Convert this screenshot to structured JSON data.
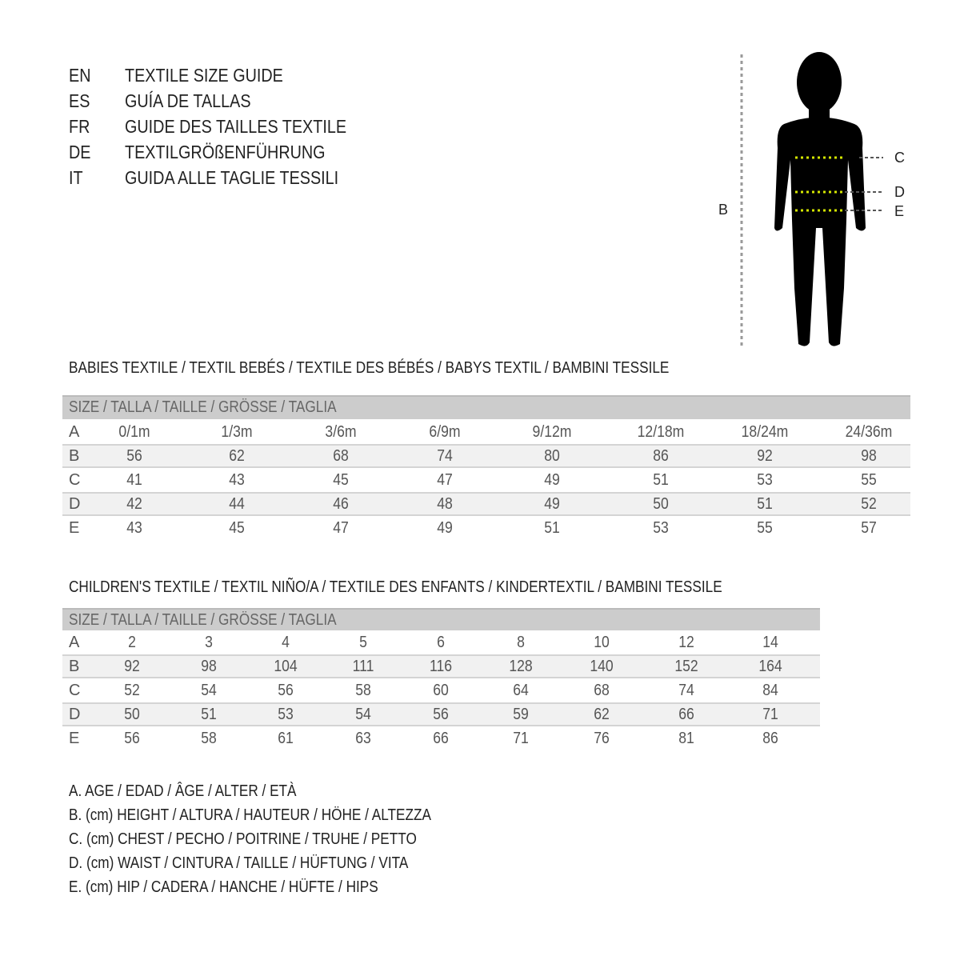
{
  "titles": [
    {
      "code": "EN",
      "text": "TEXTILE SIZE GUIDE"
    },
    {
      "code": "ES",
      "text": "GUÍA DE TALLAS"
    },
    {
      "code": "FR",
      "text": "GUIDE DES TAILLES TEXTILE"
    },
    {
      "code": "DE",
      "text": "TEXTILGRÖßENFÜHRUNG"
    },
    {
      "code": "IT",
      "text": "GUIDA ALLE TAGLIE TESSILI"
    }
  ],
  "figure": {
    "height_label": "B",
    "chest_label": "C",
    "waist_label": "D",
    "hip_label": "E",
    "measure_line_color": "#d4e600"
  },
  "babies": {
    "title": "BABIES TEXTILE / TEXTIL BEBÉS / TEXTILE DES BÉBÉS / BABYS TEXTIL  / BAMBINI TESSILE",
    "header": "SIZE / TALLA / TAILLE / GRÖSSE / TAGLIA",
    "rows": [
      {
        "label": "A",
        "values": [
          "0/1m",
          "1/3m",
          "3/6m",
          "6/9m",
          "9/12m",
          "12/18m",
          "18/24m",
          "24/36m"
        ]
      },
      {
        "label": "B",
        "values": [
          "56",
          "62",
          "68",
          "74",
          "80",
          "86",
          "92",
          "98"
        ]
      },
      {
        "label": "C",
        "values": [
          "41",
          "43",
          "45",
          "47",
          "49",
          "51",
          "53",
          "55"
        ]
      },
      {
        "label": "D",
        "values": [
          "42",
          "44",
          "46",
          "48",
          "49",
          "50",
          "51",
          "52"
        ]
      },
      {
        "label": "E",
        "values": [
          "43",
          "45",
          "47",
          "49",
          "51",
          "53",
          "55",
          "57"
        ]
      }
    ]
  },
  "children": {
    "title": "CHILDREN'S TEXTILE / TEXTIL NIÑO/A / TEXTILE DES ENFANTS / KINDERTEXTIL / BAMBINI TESSILE",
    "header": "SIZE / TALLA / TAILLE / GRÖSSE / TAGLIA",
    "rows": [
      {
        "label": "A",
        "values": [
          "2",
          "3",
          "4",
          "5",
          "6",
          "8",
          "10",
          "12",
          "14"
        ]
      },
      {
        "label": "B",
        "values": [
          "92",
          "98",
          "104",
          "111",
          "116",
          "128",
          "140",
          "152",
          "164"
        ]
      },
      {
        "label": "C",
        "values": [
          "52",
          "54",
          "56",
          "58",
          "60",
          "64",
          "68",
          "74",
          "84"
        ]
      },
      {
        "label": "D",
        "values": [
          "50",
          "51",
          "53",
          "54",
          "56",
          "59",
          "62",
          "66",
          "71"
        ]
      },
      {
        "label": "E",
        "values": [
          "56",
          "58",
          "61",
          "63",
          "66",
          "71",
          "76",
          "81",
          "86"
        ]
      }
    ]
  },
  "legend": [
    "A. AGE / EDAD / ÂGE / ALTER / ETÀ",
    "B. (cm) HEIGHT / ALTURA / HAUTEUR / HÖHE / ALTEZZA",
    "C. (cm) CHEST / PECHO / POITRINE / TRUHE / PETTO",
    "D. (cm) WAIST / CINTURA / TAILLE / HÜFTUNG / VITA",
    "E. (cm) HIP / CADERA / HANCHE / HÜFTE / HIPS"
  ]
}
